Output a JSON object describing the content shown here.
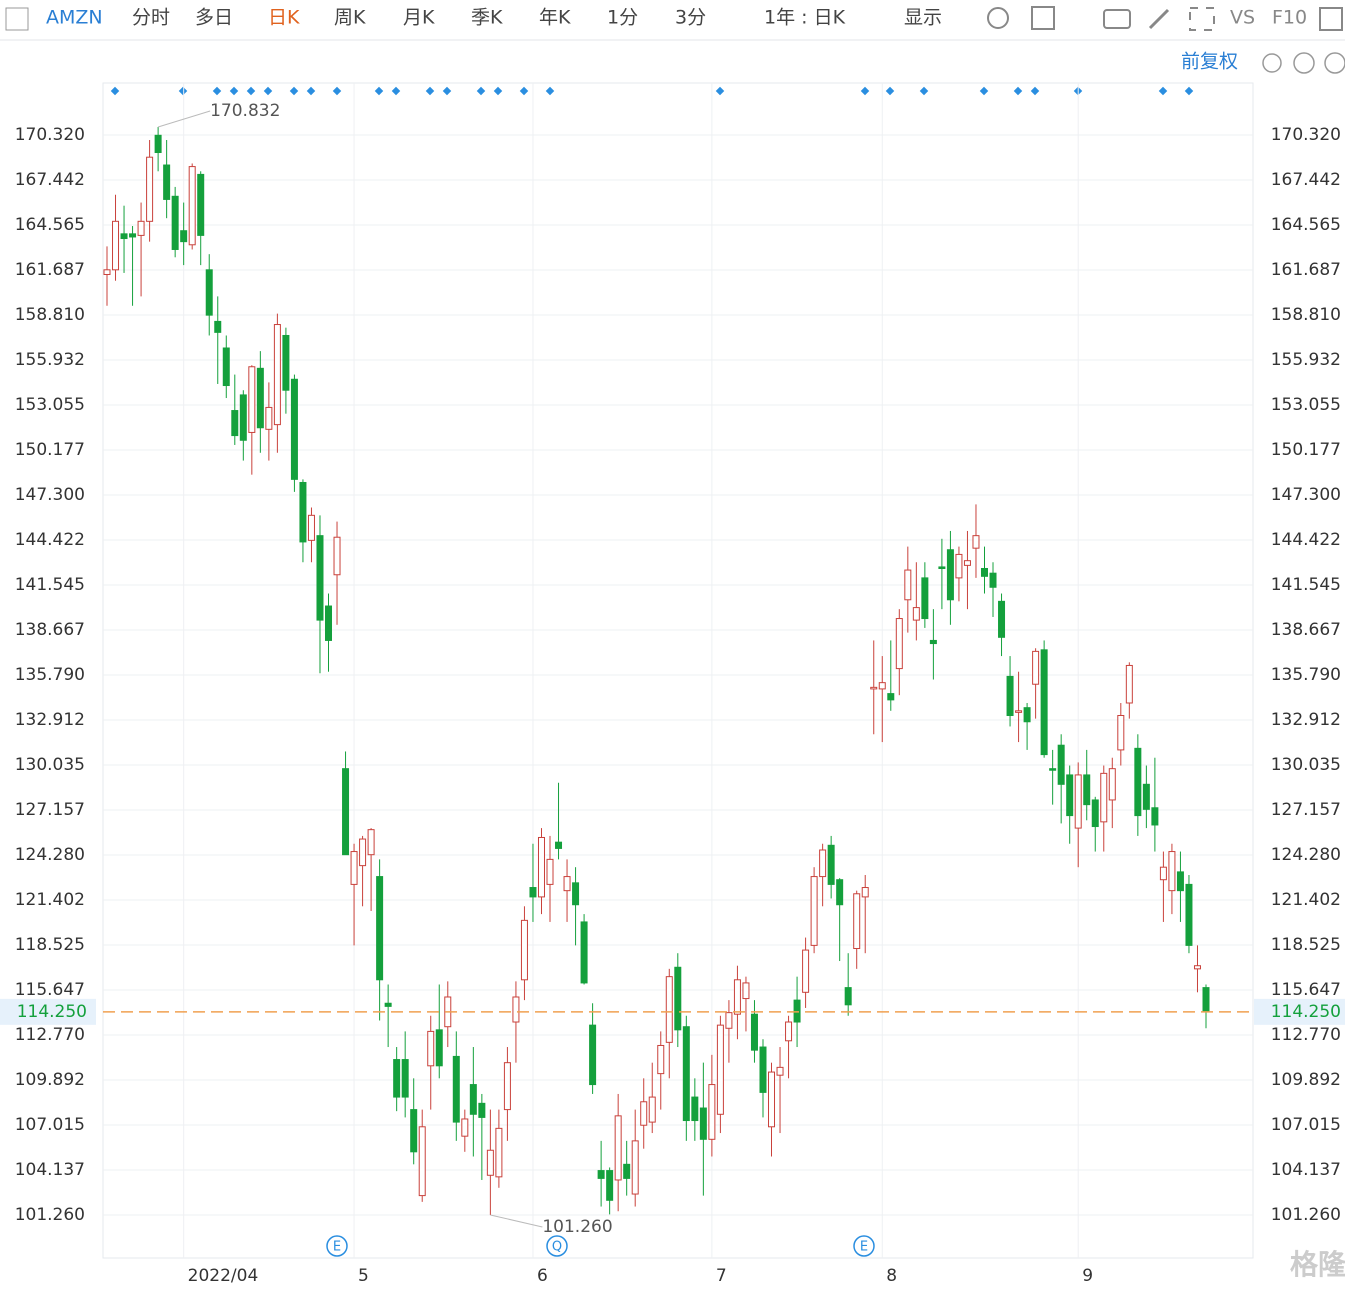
{
  "toolbar": {
    "symbol": "AMZN",
    "tabs": [
      "分时",
      "多日",
      "日K",
      "周K",
      "月K",
      "季K",
      "年K",
      "1分",
      "3分"
    ],
    "period": "1年 : 日K",
    "display": "显示",
    "vs": "VS",
    "f10": "F10",
    "adjust": "前复权"
  },
  "watermark": "格隆汇",
  "chart_data": {
    "type": "candlestick",
    "up_color": "#c9413b",
    "down_color": "#14a03c",
    "categories": [
      null,
      null,
      null,
      null,
      null,
      null,
      null,
      null,
      null,
      "2022/04",
      null,
      null,
      null,
      null,
      null,
      null,
      null,
      null,
      null,
      null,
      null,
      null,
      null,
      null,
      null,
      null,
      null,
      null,
      null,
      "5",
      null,
      null,
      null,
      null,
      null,
      null,
      null,
      null,
      null,
      null,
      null,
      null,
      null,
      null,
      null,
      null,
      null,
      null,
      null,
      null,
      "6",
      null,
      null,
      null,
      null,
      null,
      null,
      null,
      null,
      null,
      null,
      null,
      null,
      null,
      null,
      null,
      null,
      null,
      null,
      null,
      null,
      "7",
      null,
      null,
      null,
      null,
      null,
      null,
      null,
      null,
      null,
      null,
      null,
      null,
      null,
      null,
      null,
      null,
      null,
      null,
      null,
      "8",
      null,
      null,
      null,
      null,
      null,
      null,
      null,
      null,
      null,
      null,
      null,
      null,
      null,
      null,
      null,
      null,
      null,
      null,
      null,
      null,
      null,
      null,
      "9",
      null,
      null,
      null,
      null,
      null,
      null,
      null,
      null,
      null,
      null,
      null,
      null,
      null,
      null,
      null
    ],
    "open": [
      161.4,
      161.7,
      164.0,
      164.0,
      163.9,
      164.8,
      170.3,
      168.4,
      166.4,
      164.2,
      163.3,
      167.8,
      161.7,
      158.4,
      156.7,
      152.7,
      153.7,
      151.3,
      155.4,
      151.5,
      151.8,
      157.5,
      154.7,
      148.1,
      144.4,
      144.7,
      140.2,
      142.2,
      129.8,
      122.4,
      123.6,
      124.3,
      122.9,
      114.8,
      111.2,
      111.2,
      108.0,
      102.5,
      110.8,
      113.1,
      113.3,
      111.4,
      106.3,
      109.6,
      108.4,
      103.8,
      103.7,
      108.0,
      113.6,
      116.3,
      122.2,
      121.6,
      122.4,
      125.1,
      122.0,
      122.5,
      120.0,
      113.4,
      104.1,
      104.1,
      103.5,
      104.5,
      102.6,
      107.0,
      107.2,
      110.3,
      112.3,
      117.1,
      113.3,
      108.8,
      108.1,
      106.1,
      107.7,
      113.2,
      114.1,
      115.1,
      114.1,
      112.0,
      106.9,
      110.2,
      112.4,
      115.0,
      115.5,
      118.5,
      122.9,
      124.9,
      122.7,
      115.8,
      118.3,
      121.6,
      134.9,
      134.9,
      134.6,
      136.2,
      140.6,
      139.3,
      142.0,
      138.0,
      142.7,
      143.8,
      142.0,
      142.8,
      143.9,
      142.6,
      142.3,
      140.5,
      135.7,
      133.4,
      133.7,
      135.2,
      137.4,
      129.8,
      131.3,
      129.4,
      126.0,
      129.4,
      127.8,
      126.4,
      127.8,
      131.0,
      134.0,
      131.1,
      128.8,
      127.3,
      122.7,
      122.0,
      123.2,
      122.4,
      117.0,
      115.8
    ],
    "high": [
      163.2,
      166.5,
      165.8,
      164.5,
      166.0,
      170.0,
      170.832,
      170.0,
      167.0,
      166.0,
      168.5,
      168.0,
      162.7,
      160.0,
      157.5,
      155.0,
      154.0,
      155.6,
      156.5,
      154.5,
      158.9,
      158.0,
      155.0,
      148.3,
      146.5,
      146.0,
      141.0,
      145.6,
      130.9,
      125.0,
      125.5,
      126.0,
      124.0,
      116.0,
      112.0,
      113.0,
      110.0,
      108.0,
      114.0,
      116.0,
      116.2,
      113.0,
      108.0,
      112.0,
      109.0,
      108.0,
      108.0,
      112.0,
      116.2,
      121.0,
      125.0,
      126.0,
      125.5,
      128.9,
      124.0,
      123.5,
      120.5,
      114.8,
      106.0,
      104.3,
      109.0,
      106.0,
      108.0,
      110.0,
      111.0,
      113.0,
      117.0,
      118.0,
      114.0,
      110.0,
      111.0,
      111.5,
      114.0,
      115.0,
      117.2,
      116.5,
      115.0,
      112.5,
      111.0,
      112.0,
      114.0,
      116.5,
      119.0,
      123.5,
      125.0,
      125.5,
      122.8,
      118.0,
      122.0,
      123.0,
      138.0,
      137.0,
      138.0,
      140.0,
      144.0,
      143.0,
      143.0,
      140.0,
      144.5,
      145.0,
      144.0,
      145.0,
      146.7,
      144.0,
      143.0,
      141.0,
      137.0,
      136.0,
      134.0,
      137.5,
      138.0,
      131.0,
      132.0,
      130.0,
      130.2,
      131.0,
      128.0,
      130.0,
      130.5,
      134.0,
      136.6,
      132.0,
      130.0,
      130.5,
      124.5,
      125.0,
      124.5,
      123.0,
      118.5,
      116.0
    ],
    "low": [
      159.4,
      161.0,
      161.5,
      159.4,
      160.0,
      163.5,
      168.0,
      165.0,
      162.5,
      162.0,
      163.0,
      162.0,
      157.5,
      154.4,
      153.5,
      150.5,
      149.5,
      148.6,
      150.0,
      149.5,
      150.0,
      152.5,
      147.5,
      143.0,
      143.0,
      135.9,
      136.0,
      139.0,
      124.3,
      118.5,
      121.0,
      120.7,
      113.7,
      112.0,
      107.9,
      107.5,
      104.5,
      102.1,
      108.0,
      110.0,
      112.0,
      106.0,
      105.3,
      105.0,
      103.5,
      101.26,
      103.0,
      106.0,
      111.0,
      115.0,
      120.0,
      120.5,
      120.0,
      124.0,
      120.0,
      118.5,
      116.0,
      109.0,
      101.8,
      101.3,
      101.5,
      102.5,
      101.8,
      105.5,
      106.5,
      108.0,
      110.0,
      112.0,
      106.0,
      106.0,
      102.5,
      105.0,
      106.5,
      111.0,
      112.5,
      113.0,
      111.0,
      107.5,
      105.0,
      106.5,
      110.0,
      112.0,
      114.5,
      118.0,
      121.0,
      121.5,
      117.5,
      114.0,
      117.0,
      118.0,
      132.0,
      131.5,
      133.5,
      134.5,
      138.5,
      138.0,
      138.8,
      135.5,
      140.0,
      139.0,
      140.5,
      140.0,
      142.0,
      141.0,
      139.5,
      137.0,
      132.5,
      131.5,
      131.0,
      133.0,
      130.5,
      127.5,
      126.3,
      125.0,
      123.5,
      126.5,
      124.5,
      124.5,
      126.0,
      130.0,
      133.0,
      125.5,
      126.0,
      124.5,
      120.0,
      120.5,
      120.0,
      118.0,
      115.5,
      113.2
    ],
    "close": [
      161.7,
      164.8,
      163.7,
      163.8,
      164.8,
      168.9,
      169.2,
      166.2,
      163.0,
      163.5,
      168.3,
      163.9,
      158.8,
      157.7,
      154.3,
      151.1,
      150.8,
      155.5,
      151.6,
      152.9,
      158.2,
      154.0,
      148.3,
      144.3,
      146.0,
      139.3,
      138.0,
      144.6,
      124.3,
      124.5,
      125.3,
      125.9,
      116.3,
      114.6,
      108.8,
      108.8,
      105.3,
      106.9,
      113.0,
      110.8,
      115.2,
      107.2,
      107.4,
      107.7,
      107.5,
      105.4,
      106.8,
      111.0,
      115.2,
      120.1,
      121.6,
      125.4,
      124.0,
      124.7,
      122.9,
      121.1,
      116.1,
      109.6,
      103.6,
      102.2,
      107.6,
      103.6,
      106.0,
      108.5,
      108.8,
      112.1,
      116.5,
      113.1,
      107.3,
      107.3,
      106.1,
      109.6,
      113.4,
      114.2,
      116.3,
      116.1,
      111.8,
      109.1,
      110.4,
      110.7,
      113.6,
      113.6,
      118.2,
      122.9,
      124.6,
      122.4,
      121.1,
      114.7,
      121.8,
      122.2,
      135.0,
      135.3,
      134.2,
      139.4,
      142.5,
      140.1,
      139.4,
      137.8,
      142.6,
      140.6,
      143.5,
      143.1,
      144.7,
      142.1,
      141.4,
      138.2,
      133.2,
      133.5,
      132.8,
      137.3,
      130.7,
      129.7,
      128.8,
      126.8,
      129.4,
      127.5,
      126.1,
      129.5,
      129.8,
      133.2,
      136.4,
      126.8,
      127.2,
      126.2,
      123.5,
      124.5,
      122.0,
      118.5,
      117.2,
      114.25
    ],
    "ylim": [
      98.51,
      173.645
    ],
    "yticks": [
      {
        "value": 170.32,
        "label": "170.320"
      },
      {
        "value": 167.442,
        "label": "167.442"
      },
      {
        "value": 164.565,
        "label": "164.565"
      },
      {
        "value": 161.687,
        "label": "161.687"
      },
      {
        "value": 158.81,
        "label": "158.810"
      },
      {
        "value": 155.932,
        "label": "155.932"
      },
      {
        "value": 153.055,
        "label": "153.055"
      },
      {
        "value": 150.177,
        "label": "150.177"
      },
      {
        "value": 147.3,
        "label": "147.300"
      },
      {
        "value": 144.422,
        "label": "144.422"
      },
      {
        "value": 141.545,
        "label": "141.545"
      },
      {
        "value": 138.667,
        "label": "138.667"
      },
      {
        "value": 135.79,
        "label": "135.790"
      },
      {
        "value": 132.912,
        "label": "132.912"
      },
      {
        "value": 130.035,
        "label": "130.035"
      },
      {
        "value": 127.157,
        "label": "127.157"
      },
      {
        "value": 124.28,
        "label": "124.280"
      },
      {
        "value": 121.402,
        "label": "121.402"
      },
      {
        "value": 118.525,
        "label": "118.525"
      },
      {
        "value": 115.647,
        "label": "115.647"
      },
      {
        "value": 112.77,
        "label": "112.770"
      },
      {
        "value": 109.892,
        "label": "109.892"
      },
      {
        "value": 107.015,
        "label": "107.015"
      },
      {
        "value": 104.137,
        "label": "104.137"
      },
      {
        "value": 101.26,
        "label": "101.260"
      }
    ],
    "grid": true,
    "max_annotation": {
      "value": 170.832,
      "label": "170.832"
    },
    "min_annotation": {
      "value": 101.26,
      "label": "101.260"
    },
    "last_price": {
      "value": 114.25,
      "label": "114.250",
      "color": "#f0a050"
    },
    "events": [
      "E",
      "Q",
      "E"
    ]
  }
}
